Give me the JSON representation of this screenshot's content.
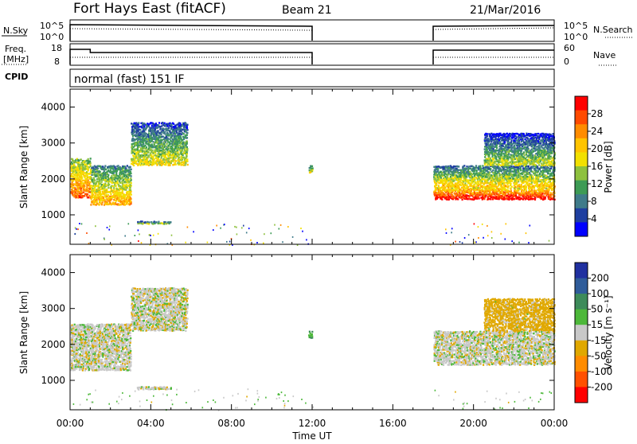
{
  "header": {
    "title": "Fort Hays East (fitACF)",
    "beam": "Beam 21",
    "date": "21/Mar/2016"
  },
  "panels": {
    "nsky_label": "N.Sky",
    "nsky_ticks": [
      "10^5",
      "10^0"
    ],
    "nsearch_label": "N.Search",
    "nsearch_ticks": [
      "10^5",
      "10^0"
    ],
    "freq_label_1": "Freq.",
    "freq_label_2": "[MHz]",
    "freq_ticks": [
      "18",
      "8"
    ],
    "nave_label": "Nave",
    "nave_ticks": [
      "60",
      "0"
    ],
    "cpid_label": "CPID",
    "mode_text": "normal (fast) 151 IF"
  },
  "colorbars": {
    "power": {
      "label": "Power [dB]",
      "ticks": [
        "28",
        "24",
        "20",
        "16",
        "12",
        "8",
        "4"
      ],
      "colors": [
        "#ff0000",
        "#ff4a00",
        "#ff8c00",
        "#ffc400",
        "#f2e000",
        "#8ec13e",
        "#3d9b55",
        "#3f7b8a",
        "#1f3fa0",
        "#0000ff"
      ]
    },
    "velocity": {
      "label": "Velocity [m s⁻¹]",
      "ticks": [
        "200",
        "100",
        "50",
        "15",
        "-15",
        "-50",
        "-100",
        "-200"
      ],
      "colors": [
        "#2030a0",
        "#2f5c9a",
        "#3d8b5a",
        "#4db83a",
        "#c8c8c8",
        "#e0a800",
        "#ff8c00",
        "#ff5000",
        "#ff0000"
      ]
    }
  },
  "axes": {
    "ylabel": "Slant Range [km]",
    "xlabel": "Time UT",
    "yticks": [
      "4000",
      "3000",
      "2000",
      "1000"
    ],
    "xticks": [
      "00:00",
      "04:00",
      "08:00",
      "12:00",
      "16:00",
      "20:00",
      "00:00"
    ]
  },
  "chart_data": [
    {
      "type": "heatmap",
      "title": "",
      "xlabel": "",
      "ylabel": "Slant Range [km]",
      "xlim": [
        0,
        24
      ],
      "ylim": [
        180,
        4500
      ],
      "colorbar": "Power [dB]",
      "regions": [
        {
          "t": [
            0.0,
            1.0
          ],
          "r": [
            1500,
            2600
          ],
          "level": 20
        },
        {
          "t": [
            1.0,
            3.0
          ],
          "r": [
            1300,
            2400
          ],
          "level": 16
        },
        {
          "t": [
            3.0,
            5.8
          ],
          "r": [
            2400,
            3600
          ],
          "level": 12
        },
        {
          "t": [
            3.3,
            5.0
          ],
          "r": [
            770,
            850
          ],
          "level": 8
        },
        {
          "t": [
            11.8,
            12.0
          ],
          "r": [
            2200,
            2400
          ],
          "level": 12
        },
        {
          "t": [
            18.0,
            24.0
          ],
          "r": [
            1450,
            1800
          ],
          "level": 24
        },
        {
          "t": [
            18.0,
            24.0
          ],
          "r": [
            1800,
            2400
          ],
          "level": 14
        },
        {
          "t": [
            20.5,
            24.0
          ],
          "r": [
            2400,
            3300
          ],
          "level": 10
        }
      ]
    },
    {
      "type": "heatmap",
      "title": "",
      "xlabel": "Time UT",
      "ylabel": "Slant Range [km]",
      "xlim": [
        0,
        24
      ],
      "ylim": [
        180,
        4500
      ],
      "colorbar": "Velocity [m s⁻¹]",
      "regions": [
        {
          "t": [
            0.0,
            3.0
          ],
          "r": [
            1300,
            2600
          ],
          "level": 0
        },
        {
          "t": [
            3.0,
            5.8
          ],
          "r": [
            2400,
            3600
          ],
          "level": 0
        },
        {
          "t": [
            3.3,
            5.0
          ],
          "r": [
            770,
            850
          ],
          "level": 0
        },
        {
          "t": [
            11.8,
            12.0
          ],
          "r": [
            2200,
            2400
          ],
          "level": 40
        },
        {
          "t": [
            18.0,
            24.0
          ],
          "r": [
            1450,
            2400
          ],
          "level": 0
        },
        {
          "t": [
            20.5,
            24.0
          ],
          "r": [
            2400,
            3300
          ],
          "level": -30
        }
      ]
    }
  ]
}
